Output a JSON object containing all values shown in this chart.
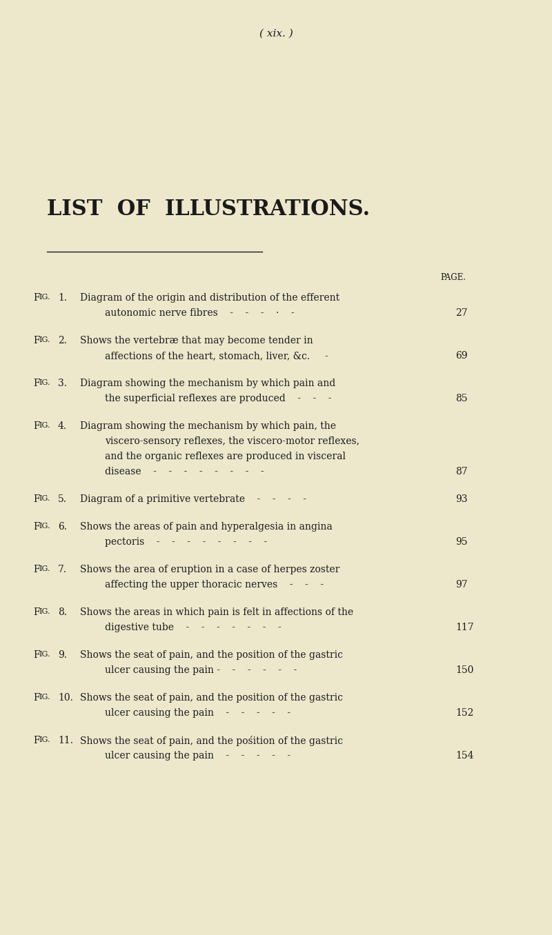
{
  "background_color": "#ede8cc",
  "page_header": "( xix. )",
  "section_title": "LIST  OF  ILLUSTRATIONS.",
  "page_label": "PAGE.",
  "figures": [
    {
      "fig_num": "1",
      "line1": "Diagram of the origin and distribution of the efferent",
      "line2": "autonomic nerve fibres    -    -    -    ·    -",
      "page": "27"
    },
    {
      "fig_num": "2",
      "line1": "Shows the vertebræ that may become tender in",
      "line2": "affections of the heart, stomach, liver, &c.     -",
      "page": "69"
    },
    {
      "fig_num": "3",
      "line1": "Diagram showing the mechanism by which pain and",
      "line2": "the superficial reflexes are produced    -    -    -",
      "page": "85"
    },
    {
      "fig_num": "4",
      "line1": "Diagram showing the mechanism by which pain, the",
      "line2": "viscero-sensory reflexes, the viscero-motor reflexes,",
      "line3": "and the organic reflexes are produced in visceral",
      "line4": "disease    -    -    -    -    -    -    -    -",
      "page": "87"
    },
    {
      "fig_num": "5",
      "line1": "Diagram of a primitive vertebrate    -    -    -    -",
      "page": "93"
    },
    {
      "fig_num": "6",
      "line1": "Shows the areas of pain and hyperalgesia in angina",
      "line2": "pectoris    -    -    -    -    -    -    -    -",
      "page": "95"
    },
    {
      "fig_num": "7",
      "line1": "Shows the area of eruption in a case of herpes zoster",
      "line2": "affecting the upper thoracic nerves    -    -    -",
      "page": "97"
    },
    {
      "fig_num": "8",
      "line1": "Shows the areas in which pain is felt in affections of the",
      "line2": "digestive tube    -    -    -    -    -    -    -",
      "page": "117"
    },
    {
      "fig_num": "9",
      "line1": "Shows the seat of pain, and the position of the gastric",
      "line2": "ulcer causing the pain -    -    -    -    -    -",
      "page": "150"
    },
    {
      "fig_num": "10",
      "line1": "Shows the seat of pain, and the position of the gastric",
      "line2": "ulcer causing the pain    -    -    -    -    -",
      "page": "152"
    },
    {
      "fig_num": "11",
      "line1": "Shows the seat of pain, and the pośition of the gastric",
      "line2": "ulcer causing the pain    -    -    -    -    -",
      "page": "154"
    }
  ],
  "text_color": "#1a1a1a",
  "header_fontsize": 11,
  "title_fontsize": 22,
  "fig_label_fontsize": 9.5,
  "body_fontsize": 10,
  "page_num_fontsize": 10,
  "page_label_fontsize": 8.5
}
